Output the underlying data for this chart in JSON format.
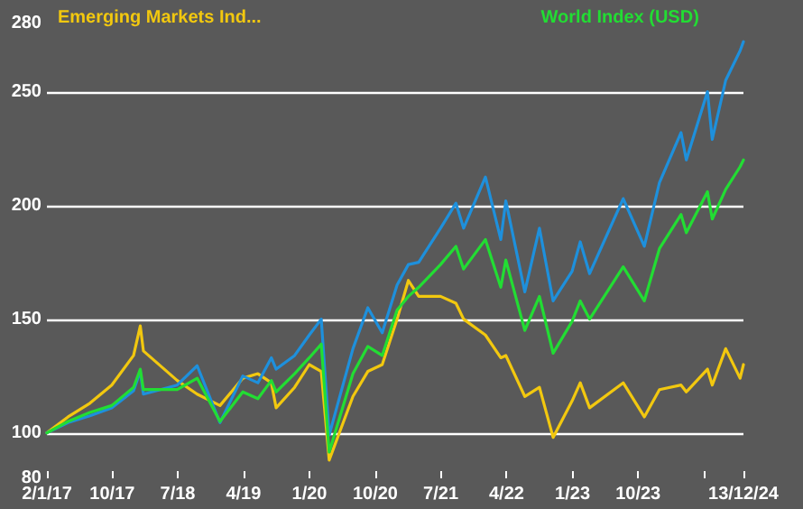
{
  "chart_data": {
    "type": "line",
    "x": [
      "2017-01-02",
      "2017-03-31",
      "2017-06-30",
      "2017-09-29",
      "2017-12-29",
      "2018-01-26",
      "2018-02-08",
      "2018-06-29",
      "2018-09-20",
      "2018-12-24",
      "2019-03-29",
      "2019-05-31",
      "2019-07-26",
      "2019-08-15",
      "2019-10-31",
      "2019-12-31",
      "2020-02-19",
      "2020-03-23",
      "2020-06-30",
      "2020-08-31",
      "2020-10-30",
      "2020-12-31",
      "2021-02-16",
      "2021-03-31",
      "2021-06-30",
      "2021-09-02",
      "2021-10-04",
      "2022-01-03",
      "2022-03-08",
      "2022-03-29",
      "2022-06-16",
      "2022-08-16",
      "2022-10-12",
      "2022-12-30",
      "2023-02-02",
      "2023-03-13",
      "2023-07-31",
      "2023-10-27",
      "2023-12-29",
      "2024-03-28",
      "2024-04-19",
      "2024-07-16",
      "2024-08-05",
      "2024-09-30",
      "2024-11-29",
      "2024-12-13"
    ],
    "series": [
      {
        "name": "Emerging Markets Ind...",
        "color": "#f2c80f",
        "values": [
          100,
          107,
          113,
          121,
          134,
          147,
          136,
          123,
          117,
          112,
          124,
          126,
          122,
          111,
          120,
          130,
          127,
          88,
          116,
          127,
          130,
          150,
          167,
          160,
          160,
          157,
          150,
          143,
          133,
          134,
          116,
          120,
          98,
          114,
          122,
          111,
          122,
          107,
          119,
          121,
          118,
          128,
          121,
          137,
          124,
          130
        ]
      },
      {
        "color": "#1e90dc",
        "values": [
          100,
          104.5,
          107.5,
          111,
          118.5,
          127,
          117,
          121,
          129.5,
          104.5,
          125,
          122,
          133,
          128,
          134,
          143,
          150,
          99,
          137,
          155,
          144,
          165,
          174,
          175,
          190,
          201,
          190,
          212.5,
          185,
          202,
          162,
          190,
          158,
          171,
          184,
          170,
          203,
          182,
          210,
          232,
          220,
          250,
          229,
          255,
          268,
          272
        ]
      },
      {
        "name": "World Index (USD)",
        "color": "#22dd33",
        "values": [
          100,
          105,
          109,
          112,
          120,
          128,
          119,
          119,
          124,
          105,
          118,
          115,
          123,
          118,
          126,
          133,
          139,
          91.5,
          126,
          138,
          134,
          154,
          160,
          164,
          174,
          182,
          172,
          185,
          164,
          176,
          145,
          160,
          135,
          149,
          158,
          150,
          173,
          158,
          181,
          196,
          188,
          206,
          194,
          207,
          217,
          220
        ]
      }
    ],
    "xlim": [
      "2017-01-02",
      "2024-12-13"
    ],
    "xticks": [
      {
        "value": "2017-01-02",
        "label": "2/1/17"
      },
      {
        "value": "2017-10-01",
        "label": "10/17"
      },
      {
        "value": "2018-07-01",
        "label": "7/18"
      },
      {
        "value": "2019-04-01",
        "label": "4/19"
      },
      {
        "value": "2020-01-01",
        "label": "1/20"
      },
      {
        "value": "2020-10-01",
        "label": "10/20"
      },
      {
        "value": "2021-07-01",
        "label": "7/21"
      },
      {
        "value": "2022-04-01",
        "label": "4/22"
      },
      {
        "value": "2023-01-01",
        "label": "1/23"
      },
      {
        "value": "2023-10-01",
        "label": "10/23"
      },
      {
        "value": "2024-07-01",
        "label": null
      },
      {
        "value": "2024-12-13",
        "label": "13/12/24"
      }
    ],
    "ylim": [
      80,
      280
    ],
    "yticks": [
      80,
      100,
      150,
      200,
      250,
      280
    ],
    "grid": "y",
    "legend": "top",
    "marker": "none",
    "line_style": "solid"
  }
}
